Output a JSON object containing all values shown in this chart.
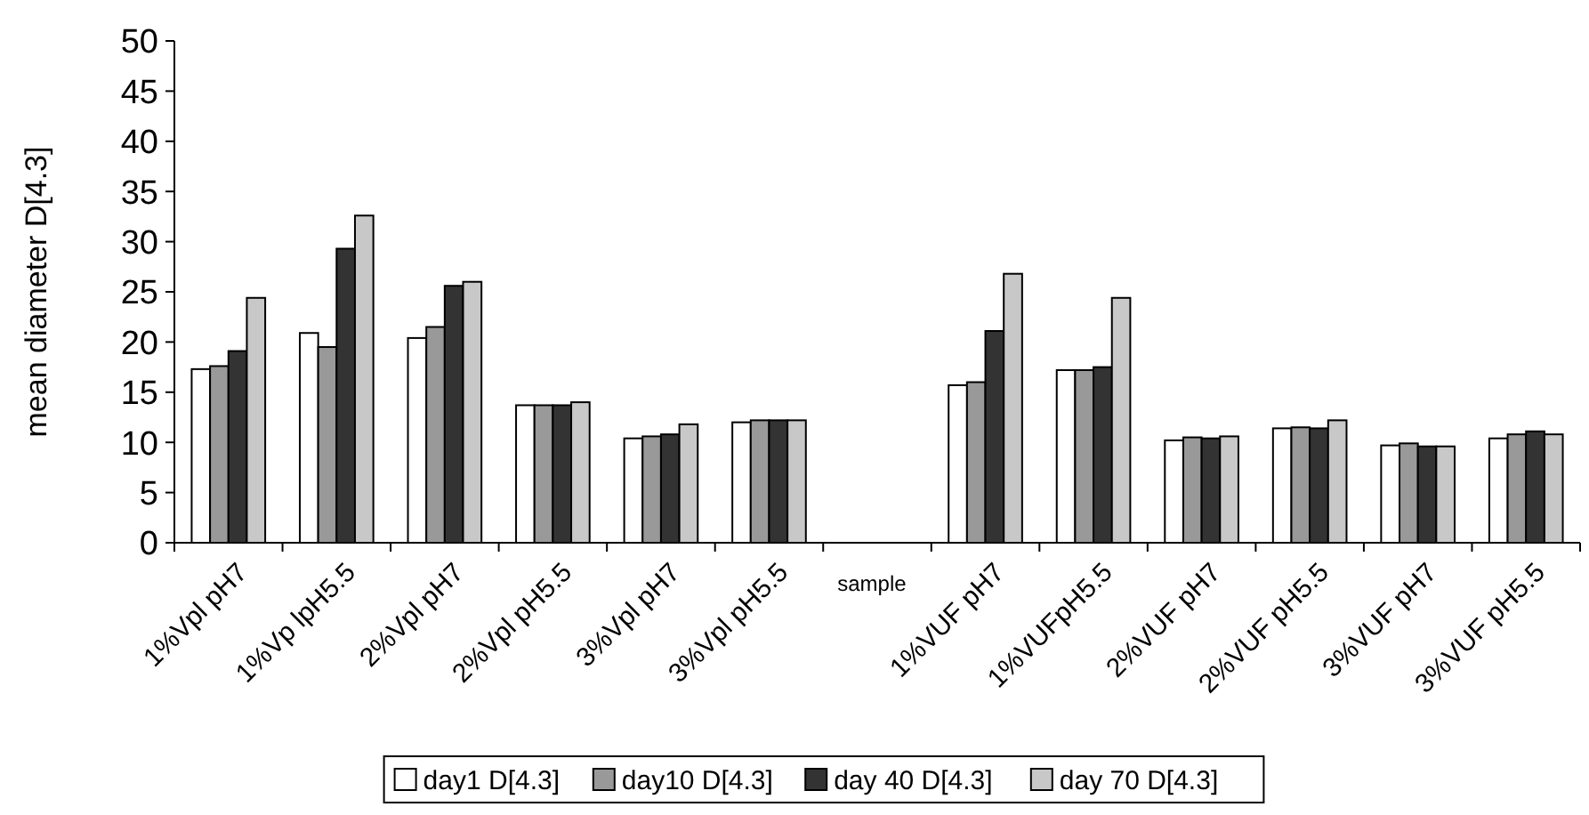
{
  "chart_data": {
    "type": "bar",
    "ylabel": "mean diameter D[4.3]",
    "xlabel": "sample",
    "categories": [
      "1%Vpl pH7",
      "1%Vp lpH5.5",
      "2%Vpl pH7",
      "2%Vpl pH5.5",
      "3%Vpl pH7",
      "3%Vpl pH5.5",
      null,
      "1%VUF pH7",
      "1%VUFpH5.5",
      "2%VUF pH7",
      "2%VUF pH5.5",
      "3%VUF pH7",
      "3%VUF pH5.5"
    ],
    "series": [
      {
        "name": "day1 D[4.3]",
        "color": "#ffffff",
        "values": [
          17.3,
          20.9,
          20.4,
          13.7,
          10.4,
          12.0,
          null,
          15.7,
          17.2,
          10.2,
          11.4,
          9.7,
          10.4
        ]
      },
      {
        "name": "day10 D[4.3]",
        "color": "#999999",
        "values": [
          17.6,
          19.5,
          21.5,
          13.7,
          10.6,
          12.2,
          null,
          16.0,
          17.2,
          10.5,
          11.5,
          9.9,
          10.8
        ]
      },
      {
        "name": "day 40 D[4.3]",
        "color": "#333333",
        "values": [
          19.1,
          29.3,
          25.6,
          13.7,
          10.8,
          12.2,
          null,
          21.1,
          17.5,
          10.4,
          11.4,
          9.6,
          11.1
        ]
      },
      {
        "name": "day 70 D[4.3]",
        "color": "#c8c8c8",
        "values": [
          24.4,
          32.6,
          26.0,
          14.0,
          11.8,
          12.2,
          null,
          26.8,
          24.4,
          10.6,
          12.2,
          9.6,
          10.8
        ]
      }
    ],
    "ylim": [
      0,
      50
    ],
    "yticks": [
      0,
      5,
      10,
      15,
      20,
      25,
      30,
      35,
      40,
      45,
      50
    ],
    "legend": "bottom",
    "grid": false
  }
}
